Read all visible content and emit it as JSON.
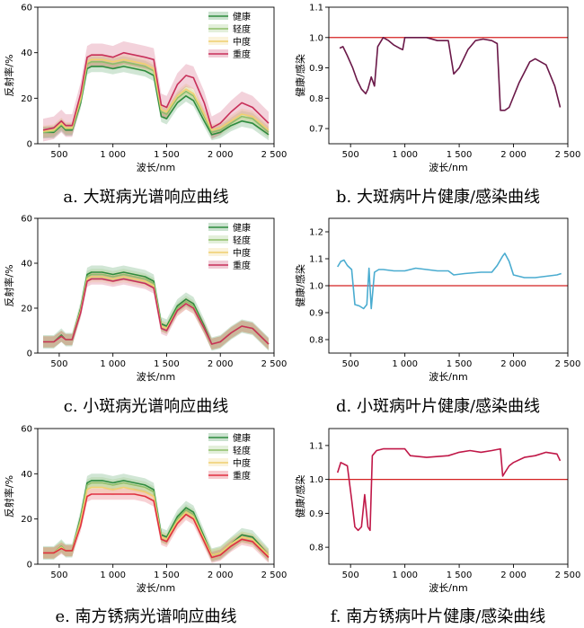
{
  "chart_data": [
    {
      "type": "line",
      "caption": "a. 大斑病光谱响应曲线",
      "xlabel": "波长/nm",
      "ylabel": "反射率/%",
      "xlim": [
        300,
        2500
      ],
      "ylim": [
        0,
        60
      ],
      "xticks": [
        500,
        1000,
        1500,
        2000,
        2500
      ],
      "xtick_labels": [
        "500",
        "1 000",
        "1 500",
        "2 000",
        "2 500"
      ],
      "yticks": [
        0,
        20,
        40,
        60
      ],
      "ytick_labels": [
        "0",
        "20",
        "40",
        "60"
      ],
      "legend": "top-right",
      "x": [
        350,
        450,
        520,
        560,
        620,
        700,
        760,
        800,
        900,
        1000,
        1100,
        1200,
        1300,
        1380,
        1450,
        1500,
        1600,
        1680,
        1750,
        1850,
        1920,
        2000,
        2100,
        2200,
        2300,
        2450
      ],
      "series": [
        {
          "name": "健康",
          "color": "#2e8b3e",
          "values": [
            5,
            5,
            8,
            6,
            6,
            18,
            33,
            34,
            34,
            33,
            34,
            33,
            32,
            30,
            12,
            11,
            18,
            21,
            19,
            10,
            4,
            5,
            8,
            10,
            9,
            4
          ],
          "band": 2.5
        },
        {
          "name": "轻度",
          "color": "#8fbf6a",
          "values": [
            5,
            5.5,
            8.5,
            6.5,
            6.5,
            19,
            35,
            36,
            36,
            35,
            36,
            35,
            34,
            32,
            14,
            13,
            20,
            23,
            21,
            12,
            5,
            6,
            9,
            12,
            11,
            5
          ],
          "band": 2.5
        },
        {
          "name": "中度",
          "color": "#f0d070",
          "values": [
            5.5,
            6,
            9,
            7,
            7,
            20,
            36,
            37,
            37,
            36,
            37,
            36,
            35,
            33,
            15,
            14,
            21,
            24,
            22,
            13,
            6,
            7,
            10,
            13,
            12,
            6
          ],
          "band": 2.5
        },
        {
          "name": "重度",
          "color": "#c8305a",
          "values": [
            6,
            7,
            10,
            8,
            8,
            22,
            38,
            39,
            39,
            38,
            40,
            39,
            38,
            37,
            17,
            16,
            26,
            30,
            29,
            18,
            7,
            9,
            14,
            18,
            16,
            9
          ],
          "band": 5
        }
      ]
    },
    {
      "type": "line",
      "caption": "b. 大斑病叶片健康/感染曲线",
      "xlabel": "波长/nm",
      "ylabel": "健康/感染",
      "xlim": [
        300,
        2500
      ],
      "ylim": [
        0.65,
        1.1
      ],
      "xticks": [
        500,
        1000,
        1500,
        2000,
        2500
      ],
      "xtick_labels": [
        "500",
        "1 000",
        "1 500",
        "2 000",
        "2 500"
      ],
      "yticks": [
        0.7,
        0.8,
        0.9,
        1.0,
        1.1
      ],
      "ytick_labels": [
        "0.7",
        "0.8",
        "0.9",
        "1.0",
        "1.1"
      ],
      "reference_line": {
        "y": 1.0,
        "color": "#d42020"
      },
      "x": [
        400,
        430,
        470,
        520,
        560,
        600,
        640,
        660,
        690,
        720,
        750,
        800,
        850,
        900,
        950,
        980,
        1000,
        1100,
        1200,
        1300,
        1400,
        1450,
        1500,
        1580,
        1650,
        1720,
        1800,
        1850,
        1880,
        1920,
        1960,
        2050,
        2150,
        2200,
        2300,
        2380,
        2430
      ],
      "series": [
        {
          "name": "",
          "color": "#6a1848",
          "values": [
            0.965,
            0.97,
            0.94,
            0.9,
            0.86,
            0.83,
            0.815,
            0.83,
            0.87,
            0.84,
            0.97,
            1.0,
            0.99,
            0.975,
            0.965,
            0.96,
            1.0,
            1.0,
            1.0,
            0.99,
            0.99,
            0.88,
            0.9,
            0.96,
            0.99,
            0.995,
            0.99,
            0.98,
            0.76,
            0.76,
            0.77,
            0.85,
            0.92,
            0.93,
            0.91,
            0.84,
            0.77
          ]
        }
      ]
    },
    {
      "type": "line",
      "caption": "c. 小斑病光谱响应曲线",
      "xlabel": "波长/nm",
      "ylabel": "反射率/%",
      "xlim": [
        300,
        2500
      ],
      "ylim": [
        0,
        60
      ],
      "xticks": [
        500,
        1000,
        1500,
        2000,
        2500
      ],
      "xtick_labels": [
        "500",
        "1 000",
        "1 500",
        "2 000",
        "2 500"
      ],
      "yticks": [
        0,
        20,
        40,
        60
      ],
      "ytick_labels": [
        "0",
        "20",
        "40",
        "60"
      ],
      "legend": "top-right",
      "x": [
        350,
        450,
        520,
        560,
        620,
        700,
        760,
        800,
        900,
        1000,
        1100,
        1200,
        1300,
        1380,
        1450,
        1500,
        1600,
        1680,
        1750,
        1850,
        1920,
        2000,
        2100,
        2200,
        2300,
        2450
      ],
      "series": [
        {
          "name": "健康",
          "color": "#2e8b3e",
          "values": [
            5,
            5,
            8,
            6,
            6,
            20,
            35,
            36,
            36,
            35,
            36,
            35,
            34,
            32,
            13,
            12,
            21,
            24,
            22,
            12,
            4,
            5,
            9,
            12,
            11,
            4
          ],
          "band": 3
        },
        {
          "name": "轻度",
          "color": "#8fbf6a",
          "values": [
            5,
            5,
            7.5,
            6,
            6,
            19,
            34,
            35,
            35,
            34,
            35,
            34,
            33,
            31,
            12,
            11,
            20,
            23,
            21,
            11,
            4,
            5,
            9,
            12,
            11,
            4
          ],
          "band": 2.5
        },
        {
          "name": "中度",
          "color": "#f0d070",
          "values": [
            5,
            5,
            7.5,
            6,
            6,
            19,
            33,
            34,
            34,
            33,
            34,
            33,
            32,
            30,
            12,
            11,
            19,
            22,
            20,
            11,
            4,
            5,
            9,
            12,
            11,
            4
          ],
          "band": 2.5
        },
        {
          "name": "重度",
          "color": "#c8305a",
          "values": [
            5,
            5,
            7.5,
            6,
            6,
            18,
            32,
            33,
            33,
            32,
            33,
            32,
            31,
            29,
            11,
            10,
            19,
            22,
            20,
            11,
            4,
            5,
            9,
            12,
            11,
            4
          ],
          "band": 2.5
        }
      ]
    },
    {
      "type": "line",
      "caption": "d. 小斑病叶片健康/感染曲线",
      "xlabel": "波长/nm",
      "ylabel": "健康/感染",
      "xlim": [
        300,
        2500
      ],
      "ylim": [
        0.75,
        1.25
      ],
      "xticks": [
        500,
        1000,
        1500,
        2000,
        2500
      ],
      "xtick_labels": [
        "500",
        "1 000",
        "1 500",
        "2 000",
        "2 500"
      ],
      "yticks": [
        0.8,
        0.9,
        1.0,
        1.1,
        1.2
      ],
      "ytick_labels": [
        "0.8",
        "0.9",
        "1.0",
        "1.1",
        "1.2"
      ],
      "reference_line": {
        "y": 1.0,
        "color": "#d42020"
      },
      "x": [
        380,
        410,
        440,
        470,
        510,
        540,
        580,
        620,
        650,
        670,
        690,
        720,
        760,
        800,
        900,
        1000,
        1100,
        1200,
        1300,
        1400,
        1450,
        1550,
        1700,
        1800,
        1850,
        1900,
        1920,
        1960,
        2000,
        2100,
        2200,
        2300,
        2400,
        2440
      ],
      "series": [
        {
          "name": "",
          "color": "#4aacd0",
          "values": [
            1.07,
            1.09,
            1.095,
            1.075,
            1.06,
            0.93,
            0.925,
            0.915,
            0.93,
            1.065,
            0.915,
            1.05,
            1.06,
            1.06,
            1.055,
            1.055,
            1.065,
            1.06,
            1.055,
            1.055,
            1.04,
            1.045,
            1.05,
            1.05,
            1.075,
            1.11,
            1.12,
            1.09,
            1.04,
            1.03,
            1.03,
            1.035,
            1.04,
            1.045
          ]
        }
      ]
    },
    {
      "type": "line",
      "caption": "e. 南方锈病光谱响应曲线",
      "xlabel": "波长/nm",
      "ylabel": "反射率/%",
      "xlim": [
        300,
        2500
      ],
      "ylim": [
        0,
        60
      ],
      "xticks": [
        500,
        1000,
        1500,
        2000,
        2500
      ],
      "xtick_labels": [
        "500",
        "1 000",
        "1 500",
        "2 000",
        "2 500"
      ],
      "yticks": [
        0,
        20,
        40,
        60
      ],
      "ytick_labels": [
        "0",
        "20",
        "40",
        "60"
      ],
      "legend": "top-right",
      "x": [
        350,
        450,
        520,
        560,
        620,
        700,
        760,
        800,
        900,
        1000,
        1100,
        1200,
        1300,
        1380,
        1450,
        1500,
        1600,
        1680,
        1750,
        1850,
        1920,
        2000,
        2100,
        2200,
        2300,
        2450
      ],
      "series": [
        {
          "name": "健康",
          "color": "#2e8b3e",
          "values": [
            5,
            5,
            8,
            6,
            6,
            21,
            36,
            37,
            37,
            36,
            37,
            36,
            35,
            33,
            13,
            12,
            21,
            25,
            23,
            12,
            4,
            5,
            9,
            13,
            12,
            4
          ],
          "band": 3
        },
        {
          "name": "轻度",
          "color": "#8fbf6a",
          "values": [
            5,
            5,
            8,
            6,
            6,
            20,
            35,
            36,
            36,
            35,
            36,
            35,
            34,
            32,
            12,
            11,
            20,
            24,
            22,
            11,
            4,
            5,
            9,
            12,
            11,
            4
          ],
          "band": 2.5
        },
        {
          "name": "中度",
          "color": "#f0d070",
          "values": [
            5,
            5,
            7.5,
            6,
            6,
            19,
            33,
            34,
            34,
            33,
            34,
            33,
            32,
            30,
            12,
            11,
            19,
            23,
            21,
            11,
            4,
            5,
            9,
            12,
            11,
            4
          ],
          "band": 2.5
        },
        {
          "name": "重度",
          "color": "#e03040",
          "values": [
            5,
            5,
            7,
            6,
            6,
            17,
            30,
            31,
            31,
            31,
            31,
            31,
            30,
            28,
            11,
            10,
            18,
            22,
            20,
            10,
            3,
            4,
            8,
            11,
            10,
            3
          ],
          "band": 2.5
        }
      ]
    },
    {
      "type": "line",
      "caption": "f. 南方锈病叶片健康/感染曲线",
      "xlabel": "波长/nm",
      "ylabel": "健康/感染",
      "xlim": [
        300,
        2500
      ],
      "ylim": [
        0.75,
        1.15
      ],
      "xticks": [
        500,
        1000,
        1500,
        2000,
        2500
      ],
      "xtick_labels": [
        "500",
        "1 000",
        "1 500",
        "2 000",
        "2 500"
      ],
      "yticks": [
        0.8,
        0.9,
        1.0,
        1.1
      ],
      "ytick_labels": [
        "0.8",
        "0.9",
        "1.0",
        "1.1"
      ],
      "reference_line": {
        "y": 1.0,
        "color": "#d42020"
      },
      "x": [
        380,
        410,
        440,
        470,
        510,
        540,
        570,
        600,
        630,
        660,
        680,
        700,
        740,
        800,
        900,
        1000,
        1050,
        1200,
        1400,
        1500,
        1600,
        1700,
        1800,
        1880,
        1900,
        1920,
        1960,
        2000,
        2100,
        2200,
        2300,
        2400,
        2430
      ],
      "series": [
        {
          "name": "",
          "color": "#c01848",
          "values": [
            1.02,
            1.05,
            1.045,
            1.04,
            0.94,
            0.86,
            0.85,
            0.86,
            0.955,
            0.86,
            0.85,
            1.07,
            1.085,
            1.09,
            1.09,
            1.09,
            1.07,
            1.065,
            1.07,
            1.08,
            1.085,
            1.08,
            1.085,
            1.09,
            1.01,
            1.02,
            1.04,
            1.05,
            1.065,
            1.07,
            1.08,
            1.075,
            1.055
          ]
        }
      ]
    }
  ]
}
